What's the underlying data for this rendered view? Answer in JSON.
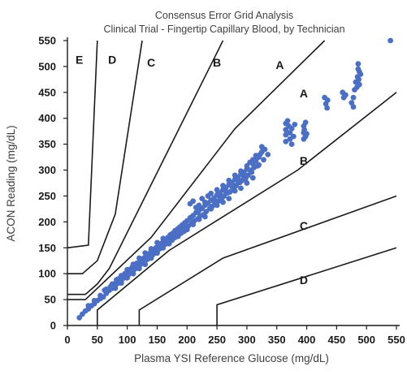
{
  "chart_data": {
    "type": "scatter",
    "title": "Consensus Error Grid Analysis",
    "subtitle": "Clinical Trial - Fingertip Capillary Blood, by Technician",
    "xlabel": "Plasma YSI Reference Glucose (mg/dL)",
    "ylabel": "ACON Reading (mg/dL)",
    "xlim": [
      0,
      550
    ],
    "ylim": [
      0,
      550
    ],
    "xticks": [
      "0",
      "50",
      "100",
      "150",
      "200",
      "250",
      "300",
      "350",
      "400",
      "450",
      "500",
      "550"
    ],
    "yticks": [
      "0",
      "50",
      "100",
      "150",
      "200",
      "250",
      "300",
      "350",
      "400",
      "450",
      "500",
      "550"
    ],
    "grid": false,
    "legend": "none",
    "colors": {
      "points": "#4a6fc4",
      "lines": "#1a1a1a",
      "text": "#404040"
    },
    "zone_labels": [
      "E",
      "D",
      "C",
      "B",
      "A",
      "A",
      "B",
      "C",
      "D"
    ],
    "zone_boundaries": [
      {
        "zone": "A",
        "points": [
          [
            0,
            50
          ],
          [
            30,
            50
          ],
          [
            140,
            170
          ],
          [
            280,
            380
          ],
          [
            430,
            550
          ]
        ]
      },
      {
        "zone": "A",
        "points": [
          [
            50,
            0
          ],
          [
            50,
            30
          ],
          [
            170,
            145
          ],
          [
            385,
            300
          ],
          [
            550,
            450
          ]
        ]
      },
      {
        "zone": "B",
        "points": [
          [
            0,
            60
          ],
          [
            30,
            60
          ],
          [
            50,
            80
          ],
          [
            70,
            110
          ],
          [
            260,
            550
          ]
        ]
      },
      {
        "zone": "B",
        "points": [
          [
            120,
            0
          ],
          [
            120,
            30
          ],
          [
            260,
            130
          ],
          [
            550,
            250
          ]
        ]
      },
      {
        "zone": "C",
        "points": [
          [
            0,
            100
          ],
          [
            25,
            100
          ],
          [
            50,
            125
          ],
          [
            80,
            215
          ],
          [
            125,
            550
          ]
        ]
      },
      {
        "zone": "C",
        "points": [
          [
            250,
            0
          ],
          [
            250,
            40
          ],
          [
            550,
            150
          ]
        ]
      },
      {
        "zone": "D",
        "points": [
          [
            0,
            150
          ],
          [
            35,
            155
          ],
          [
            50,
            550
          ]
        ]
      }
    ],
    "points": [
      [
        20,
        15
      ],
      [
        25,
        22
      ],
      [
        30,
        28
      ],
      [
        35,
        32
      ],
      [
        40,
        38
      ],
      [
        45,
        42
      ],
      [
        50,
        48
      ],
      [
        55,
        52
      ],
      [
        60,
        55
      ],
      [
        62,
        68
      ],
      [
        65,
        62
      ],
      [
        70,
        68
      ],
      [
        72,
        75
      ],
      [
        75,
        72
      ],
      [
        78,
        80
      ],
      [
        80,
        76
      ],
      [
        82,
        88
      ],
      [
        85,
        82
      ],
      [
        88,
        90
      ],
      [
        90,
        86
      ],
      [
        92,
        95
      ],
      [
        95,
        92
      ],
      [
        96,
        100
      ],
      [
        98,
        96
      ],
      [
        100,
        103
      ],
      [
        102,
        98
      ],
      [
        104,
        108
      ],
      [
        106,
        102
      ],
      [
        108,
        112
      ],
      [
        110,
        106
      ],
      [
        112,
        116
      ],
      [
        114,
        110
      ],
      [
        116,
        120
      ],
      [
        118,
        114
      ],
      [
        120,
        122
      ],
      [
        122,
        118
      ],
      [
        124,
        128
      ],
      [
        126,
        122
      ],
      [
        128,
        130
      ],
      [
        130,
        125
      ],
      [
        132,
        135
      ],
      [
        134,
        128
      ],
      [
        136,
        138
      ],
      [
        138,
        132
      ],
      [
        140,
        143
      ],
      [
        142,
        136
      ],
      [
        144,
        146
      ],
      [
        146,
        140
      ],
      [
        148,
        150
      ],
      [
        150,
        144
      ],
      [
        152,
        155
      ],
      [
        154,
        148
      ],
      [
        156,
        158
      ],
      [
        158,
        152
      ],
      [
        160,
        162
      ],
      [
        162,
        156
      ],
      [
        164,
        166
      ],
      [
        166,
        158
      ],
      [
        168,
        170
      ],
      [
        170,
        162
      ],
      [
        172,
        175
      ],
      [
        174,
        166
      ],
      [
        176,
        178
      ],
      [
        178,
        170
      ],
      [
        180,
        183
      ],
      [
        182,
        174
      ],
      [
        184,
        186
      ],
      [
        186,
        176
      ],
      [
        188,
        190
      ],
      [
        190,
        180
      ],
      [
        192,
        194
      ],
      [
        194,
        184
      ],
      [
        196,
        198
      ],
      [
        198,
        188
      ],
      [
        200,
        202
      ],
      [
        202,
        192
      ],
      [
        205,
        208
      ],
      [
        208,
        198
      ],
      [
        210,
        212
      ],
      [
        212,
        202
      ],
      [
        215,
        218
      ],
      [
        218,
        206
      ],
      [
        220,
        222
      ],
      [
        222,
        212
      ],
      [
        225,
        226
      ],
      [
        228,
        214
      ],
      [
        230,
        232
      ],
      [
        232,
        220
      ],
      [
        235,
        236
      ],
      [
        238,
        226
      ],
      [
        240,
        242
      ],
      [
        242,
        230
      ],
      [
        245,
        246
      ],
      [
        248,
        236
      ],
      [
        250,
        252
      ],
      [
        252,
        240
      ],
      [
        255,
        256
      ],
      [
        258,
        246
      ],
      [
        260,
        262
      ],
      [
        262,
        250
      ],
      [
        265,
        266
      ],
      [
        268,
        256
      ],
      [
        270,
        272
      ],
      [
        272,
        258
      ],
      [
        275,
        276
      ],
      [
        278,
        266
      ],
      [
        280,
        282
      ],
      [
        282,
        270
      ],
      [
        285,
        286
      ],
      [
        288,
        276
      ],
      [
        290,
        292
      ],
      [
        292,
        280
      ],
      [
        295,
        296
      ],
      [
        298,
        284
      ],
      [
        300,
        302
      ],
      [
        302,
        290
      ],
      [
        305,
        300
      ],
      [
        308,
        296
      ],
      [
        310,
        312
      ],
      [
        312,
        305
      ],
      [
        315,
        318
      ],
      [
        318,
        308
      ],
      [
        320,
        325
      ],
      [
        322,
        330
      ],
      [
        325,
        335
      ],
      [
        328,
        320
      ],
      [
        330,
        340
      ],
      [
        325,
        345
      ],
      [
        335,
        330
      ],
      [
        310,
        285
      ],
      [
        300,
        275
      ],
      [
        290,
        265
      ],
      [
        280,
        260
      ],
      [
        270,
        245
      ],
      [
        260,
        238
      ],
      [
        250,
        232
      ],
      [
        240,
        225
      ],
      [
        230,
        210
      ],
      [
        220,
        205
      ],
      [
        210,
        195
      ],
      [
        200,
        185
      ],
      [
        190,
        178
      ],
      [
        180,
        170
      ],
      [
        170,
        158
      ],
      [
        160,
        150
      ],
      [
        150,
        140
      ],
      [
        140,
        130
      ],
      [
        130,
        118
      ],
      [
        120,
        110
      ],
      [
        110,
        100
      ],
      [
        100,
        92
      ],
      [
        90,
        82
      ],
      [
        80,
        72
      ],
      [
        205,
        235
      ],
      [
        210,
        240
      ],
      [
        215,
        228
      ],
      [
        220,
        232
      ],
      [
        225,
        245
      ],
      [
        230,
        238
      ],
      [
        235,
        250
      ],
      [
        240,
        255
      ],
      [
        245,
        240
      ],
      [
        250,
        262
      ],
      [
        255,
        248
      ],
      [
        260,
        270
      ],
      [
        265,
        258
      ],
      [
        270,
        280
      ],
      [
        275,
        268
      ],
      [
        280,
        290
      ],
      [
        285,
        278
      ],
      [
        290,
        298
      ],
      [
        295,
        288
      ],
      [
        300,
        308
      ],
      [
        305,
        315
      ],
      [
        310,
        320
      ],
      [
        315,
        328
      ],
      [
        320,
        310
      ],
      [
        365,
        390
      ],
      [
        365,
        378
      ],
      [
        365,
        368
      ],
      [
        365,
        355
      ],
      [
        368,
        395
      ],
      [
        370,
        385
      ],
      [
        372,
        372
      ],
      [
        372,
        360
      ],
      [
        375,
        380
      ],
      [
        375,
        350
      ],
      [
        378,
        365
      ],
      [
        380,
        388
      ],
      [
        395,
        385
      ],
      [
        395,
        372
      ],
      [
        395,
        360
      ],
      [
        396,
        378
      ],
      [
        398,
        365
      ],
      [
        398,
        392
      ],
      [
        400,
        370
      ],
      [
        430,
        440
      ],
      [
        432,
        428
      ],
      [
        434,
        420
      ],
      [
        435,
        435
      ],
      [
        460,
        450
      ],
      [
        462,
        440
      ],
      [
        465,
        445
      ],
      [
        475,
        430
      ],
      [
        478,
        440
      ],
      [
        478,
        422
      ],
      [
        480,
        455
      ],
      [
        482,
        470
      ],
      [
        484,
        460
      ],
      [
        485,
        480
      ],
      [
        486,
        495
      ],
      [
        486,
        505
      ],
      [
        487,
        475
      ],
      [
        488,
        490
      ],
      [
        488,
        465
      ],
      [
        490,
        485
      ],
      [
        540,
        550
      ],
      [
        140,
        148
      ],
      [
        150,
        160
      ],
      [
        160,
        168
      ],
      [
        175,
        165
      ],
      [
        185,
        172
      ],
      [
        195,
        182
      ],
      [
        130,
        140
      ],
      [
        120,
        130
      ],
      [
        110,
        118
      ],
      [
        100,
        108
      ],
      [
        90,
        96
      ],
      [
        85,
        90
      ],
      [
        75,
        80
      ],
      [
        65,
        70
      ],
      [
        55,
        58
      ],
      [
        45,
        48
      ],
      [
        35,
        38
      ]
    ]
  }
}
